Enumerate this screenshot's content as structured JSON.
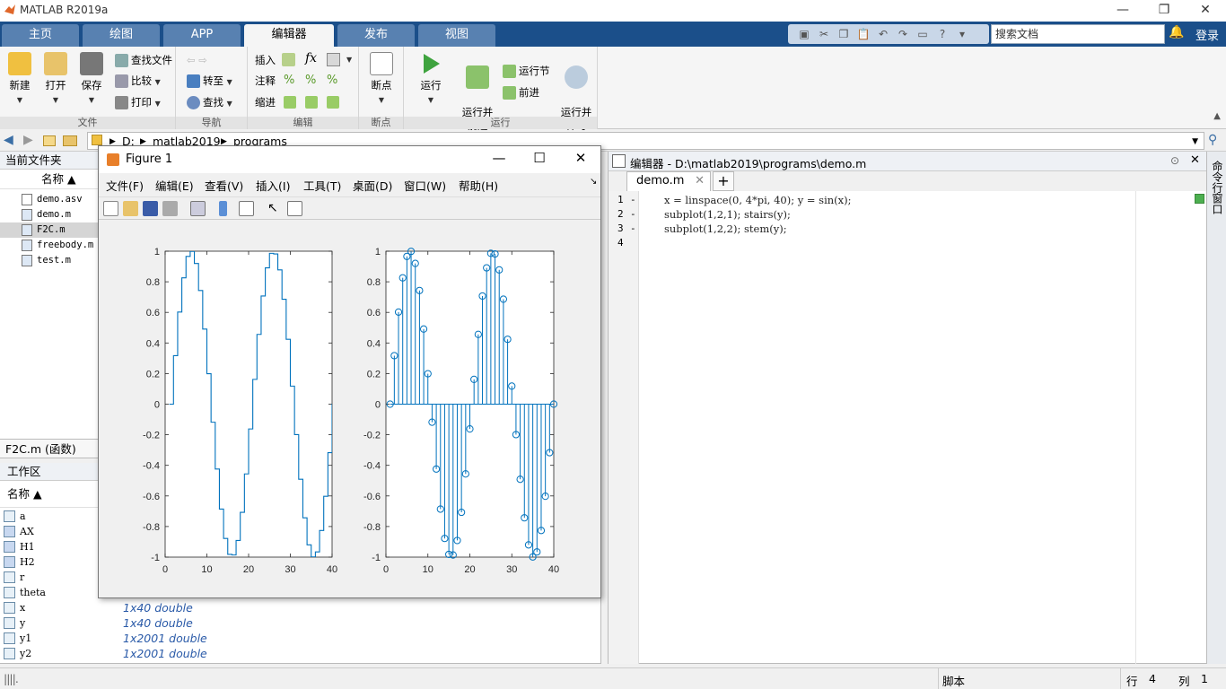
{
  "app": {
    "title": "MATLAB R2019a"
  },
  "window_controls": {
    "minimize": "—",
    "restore": "❐",
    "close": "✕"
  },
  "ribbon_tabs": [
    {
      "label": "主页",
      "active": false
    },
    {
      "label": "绘图",
      "active": false
    },
    {
      "label": "APP",
      "active": false
    },
    {
      "label": "编辑器",
      "active": true
    },
    {
      "label": "发布",
      "active": false
    },
    {
      "label": "视图",
      "active": false
    }
  ],
  "search": {
    "placeholder": "搜索文档"
  },
  "login": "登录",
  "ribbon": {
    "file": {
      "section": "文件",
      "new": "新建",
      "open": "打开",
      "save": "保存",
      "find_files": "查找文件",
      "compare": "比较",
      "print": "打印"
    },
    "navigate": {
      "section": "导航",
      "goto": "转至",
      "find": "查找"
    },
    "edit": {
      "section": "编辑",
      "insert": "插入",
      "comment": "注释",
      "indent": "缩进",
      "fx": "fx"
    },
    "breakpoints": {
      "section": "断点",
      "label": "断点"
    },
    "run": {
      "section": "运行",
      "run": "运行",
      "run_advance": "运行并\n前进",
      "run_section": "运行节",
      "advance": "前进",
      "run_time": "运行并\n计时"
    }
  },
  "address": {
    "path": [
      "D:",
      "matlab2019",
      "programs"
    ]
  },
  "current_folder": {
    "title": "当前文件夹",
    "col_name": "名称 ▲",
    "files": [
      {
        "name": "demo.asv",
        "selected": false
      },
      {
        "name": "demo.m",
        "selected": false
      },
      {
        "name": "F2C.m",
        "selected": true
      },
      {
        "name": "freebody.m",
        "selected": false
      },
      {
        "name": "test.m",
        "selected": false
      }
    ],
    "detail": "F2C.m  (函数)"
  },
  "workspace": {
    "title": "工作区",
    "col_name": "名称 ▲",
    "vars": [
      {
        "name": "a",
        "value": ""
      },
      {
        "name": "AX",
        "value": ""
      },
      {
        "name": "H1",
        "value": ""
      },
      {
        "name": "H2",
        "value": ""
      },
      {
        "name": "r",
        "value": ""
      },
      {
        "name": "theta",
        "value": ""
      },
      {
        "name": "x",
        "value": "1x40 double"
      },
      {
        "name": "y",
        "value": "1x40 double"
      },
      {
        "name": "y1",
        "value": "1x2001 double"
      },
      {
        "name": "y2",
        "value": "1x2001 double"
      }
    ]
  },
  "editor": {
    "title": "编辑器 - D:\\matlab2019\\programs\\demo.m",
    "tab": "demo.m",
    "lines": [
      {
        "n": "1",
        "code": "x = linspace(0, 4*pi, 40); y = sin(x);"
      },
      {
        "n": "2",
        "code": "subplot(1,2,1); stairs(y);"
      },
      {
        "n": "3",
        "code": "subplot(1,2,2); stem(y);"
      },
      {
        "n": "4",
        "code": ""
      }
    ],
    "command_window": "命令行窗口"
  },
  "statusbar": {
    "mode": "脚本",
    "row_label": "行",
    "row": "4",
    "col_label": "列",
    "col": "1"
  },
  "figure": {
    "title": "Figure 1",
    "menu": [
      "文件(F)",
      "编辑(E)",
      "查看(V)",
      "插入(I)",
      "工具(T)",
      "桌面(D)",
      "窗口(W)",
      "帮助(H)"
    ]
  },
  "chart_data": [
    {
      "type": "line",
      "style": "stairs",
      "color": "#0072bd",
      "xlim": [
        0,
        40
      ],
      "ylim": [
        -1,
        1
      ],
      "xticks": [
        0,
        10,
        20,
        30,
        40
      ],
      "yticks": [
        1,
        0.8,
        0.6,
        0.4,
        0.2,
        0,
        -0.2,
        -0.4,
        -0.6,
        -0.8,
        -1
      ],
      "y": [
        0,
        0.317,
        0.602,
        0.826,
        0.966,
        0.999,
        0.92,
        0.743,
        0.491,
        0.199,
        -0.118,
        -0.424,
        -0.686,
        -0.878,
        -0.982,
        -0.986,
        -0.891,
        -0.707,
        -0.456,
        -0.162,
        0.162,
        0.456,
        0.707,
        0.891,
        0.986,
        0.982,
        0.878,
        0.686,
        0.424,
        0.118,
        -0.199,
        -0.491,
        -0.743,
        -0.92,
        -0.999,
        -0.966,
        -0.826,
        -0.602,
        -0.317,
        0
      ]
    },
    {
      "type": "scatter",
      "style": "stem",
      "color": "#0072bd",
      "xlim": [
        0,
        40
      ],
      "ylim": [
        -1,
        1
      ],
      "xticks": [
        0,
        10,
        20,
        30,
        40
      ],
      "yticks": [
        1,
        0.8,
        0.6,
        0.4,
        0.2,
        0,
        -0.2,
        -0.4,
        -0.6,
        -0.8,
        -1
      ],
      "y": [
        0,
        0.317,
        0.602,
        0.826,
        0.966,
        0.999,
        0.92,
        0.743,
        0.491,
        0.199,
        -0.118,
        -0.424,
        -0.686,
        -0.878,
        -0.982,
        -0.986,
        -0.891,
        -0.707,
        -0.456,
        -0.162,
        0.162,
        0.456,
        0.707,
        0.891,
        0.986,
        0.982,
        0.878,
        0.686,
        0.424,
        0.118,
        -0.199,
        -0.491,
        -0.743,
        -0.92,
        -0.999,
        -0.966,
        -0.826,
        -0.602,
        -0.317,
        0
      ]
    }
  ]
}
